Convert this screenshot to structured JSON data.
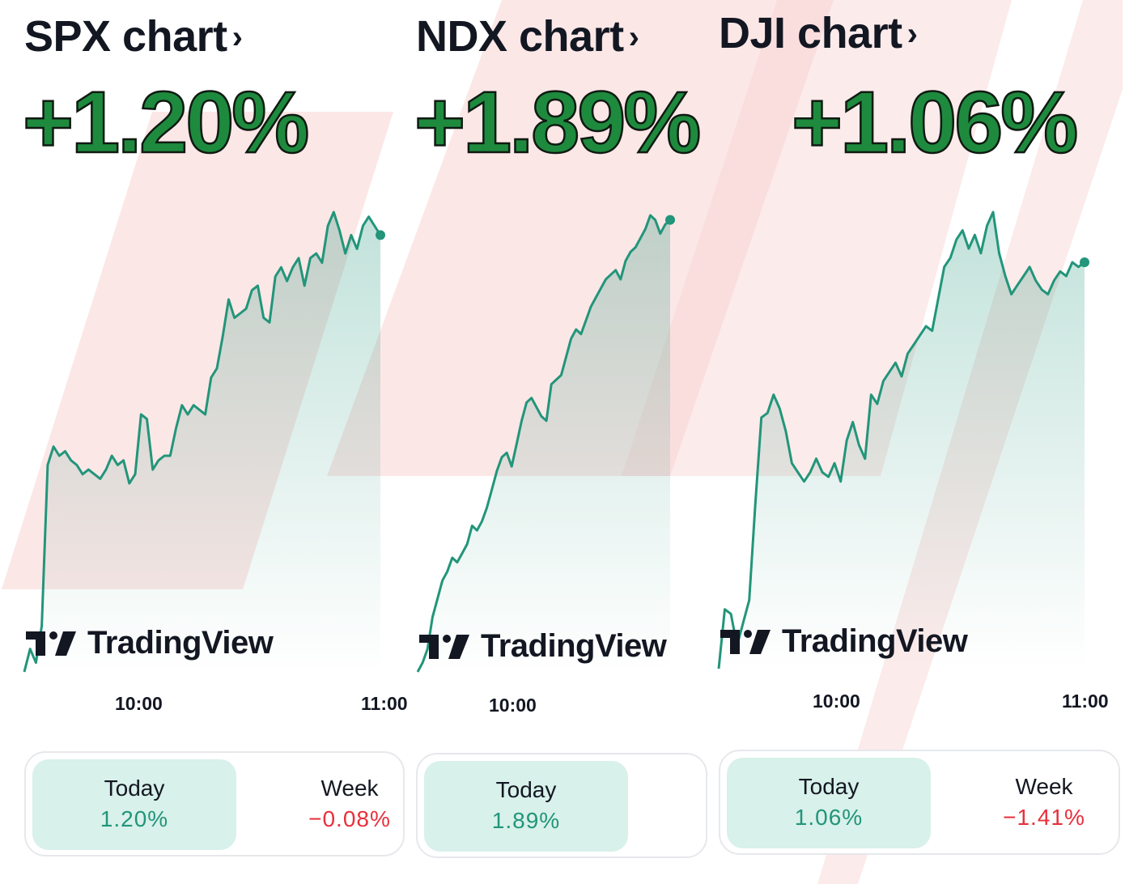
{
  "colors": {
    "accent_green": "#22957a",
    "headline_green": "#1e8a3e",
    "negative_red": "#e8303c",
    "active_tab_bg": "#d8f1ea",
    "overlay_pink": "#f9d3d3"
  },
  "brand": {
    "name": "TradingView",
    "icon": "tradingview-logo-icon"
  },
  "panels": [
    {
      "title": "SPX chart",
      "chevron": "›",
      "change": "+1.20%",
      "ticks": [
        "10:00",
        "11:00"
      ],
      "tabs": [
        {
          "label": "Today",
          "value": "1.20%",
          "dir": "up"
        },
        {
          "label": "Week",
          "value": "−0.08%",
          "dir": "down"
        }
      ]
    },
    {
      "title": "NDX chart",
      "chevron": "›",
      "change": "+1.89%",
      "ticks": [
        "10:00"
      ],
      "tabs": [
        {
          "label": "Today",
          "value": "1.89%",
          "dir": "up"
        }
      ]
    },
    {
      "title": "DJI chart",
      "chevron": "›",
      "change": "+1.06%",
      "ticks": [
        "10:00",
        "11:00"
      ],
      "tabs": [
        {
          "label": "Today",
          "value": "1.06%",
          "dir": "up"
        },
        {
          "label": "Week",
          "value": "−1.41%",
          "dir": "down"
        }
      ]
    }
  ],
  "chart_data": [
    {
      "type": "area",
      "index": "SPX",
      "x_unit": "intraday time",
      "xticks": [
        "10:00",
        "11:00"
      ],
      "percent_change": 1.2,
      "series": [
        {
          "values": [
            0.0,
            0.05,
            0.02,
            0.1,
            0.45,
            0.49,
            0.47,
            0.48,
            0.46,
            0.45,
            0.43,
            0.44,
            0.43,
            0.42,
            0.44,
            0.47,
            0.45,
            0.46,
            0.41,
            0.43,
            0.56,
            0.55,
            0.44,
            0.46,
            0.47,
            0.47,
            0.53,
            0.58,
            0.56,
            0.58,
            0.57,
            0.56,
            0.64,
            0.66,
            0.73,
            0.81,
            0.77,
            0.78,
            0.79,
            0.83,
            0.84,
            0.77,
            0.76,
            0.86,
            0.88,
            0.85,
            0.88,
            0.9,
            0.84,
            0.9,
            0.91,
            0.89,
            0.97,
            1.0,
            0.96,
            0.91,
            0.95,
            0.92,
            0.97,
            0.99,
            0.97,
            0.95
          ]
        }
      ]
    },
    {
      "type": "area",
      "index": "NDX",
      "x_unit": "intraday time",
      "xticks": [
        "10:00"
      ],
      "percent_change": 1.89,
      "series": [
        {
          "values": [
            0.0,
            0.02,
            0.05,
            0.12,
            0.16,
            0.2,
            0.22,
            0.25,
            0.24,
            0.26,
            0.28,
            0.32,
            0.31,
            0.33,
            0.36,
            0.4,
            0.44,
            0.47,
            0.48,
            0.45,
            0.5,
            0.55,
            0.59,
            0.6,
            0.58,
            0.56,
            0.55,
            0.63,
            0.64,
            0.65,
            0.69,
            0.73,
            0.75,
            0.74,
            0.77,
            0.8,
            0.82,
            0.84,
            0.86,
            0.87,
            0.88,
            0.86,
            0.9,
            0.92,
            0.93,
            0.95,
            0.97,
            1.0,
            0.99,
            0.96,
            0.98,
            0.99
          ]
        }
      ]
    },
    {
      "type": "area",
      "index": "DJI",
      "x_unit": "intraday time",
      "xticks": [
        "10:00",
        "11:00"
      ],
      "percent_change": 1.06,
      "series": [
        {
          "values": [
            0.0,
            0.13,
            0.12,
            0.05,
            0.1,
            0.15,
            0.36,
            0.55,
            0.56,
            0.6,
            0.57,
            0.52,
            0.45,
            0.43,
            0.41,
            0.43,
            0.46,
            0.43,
            0.42,
            0.45,
            0.41,
            0.5,
            0.54,
            0.49,
            0.46,
            0.6,
            0.58,
            0.63,
            0.65,
            0.67,
            0.64,
            0.69,
            0.71,
            0.73,
            0.75,
            0.74,
            0.81,
            0.88,
            0.9,
            0.94,
            0.96,
            0.92,
            0.95,
            0.91,
            0.97,
            1.0,
            0.91,
            0.86,
            0.82,
            0.84,
            0.86,
            0.88,
            0.85,
            0.83,
            0.82,
            0.85,
            0.87,
            0.86,
            0.89,
            0.88,
            0.89
          ]
        }
      ]
    }
  ]
}
